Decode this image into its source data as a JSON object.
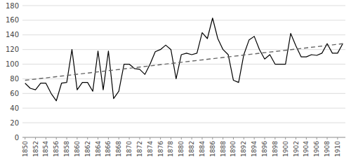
{
  "chart_data": {
    "type": "line",
    "x": [
      1850,
      1851,
      1852,
      1853,
      1854,
      1855,
      1856,
      1857,
      1858,
      1859,
      1860,
      1861,
      1862,
      1863,
      1864,
      1865,
      1866,
      1867,
      1868,
      1869,
      1870,
      1871,
      1872,
      1873,
      1874,
      1875,
      1876,
      1877,
      1878,
      1879,
      1880,
      1881,
      1882,
      1883,
      1884,
      1885,
      1886,
      1887,
      1888,
      1889,
      1890,
      1891,
      1892,
      1893,
      1894,
      1895,
      1896,
      1897,
      1898,
      1899,
      1900,
      1901,
      1902,
      1903,
      1904,
      1905,
      1906,
      1907,
      1908,
      1909,
      1910,
      1911
    ],
    "series": [
      {
        "color": "#000000",
        "line_style": "solid",
        "values": [
          74,
          67,
          65,
          74,
          74,
          60,
          50,
          74,
          75,
          120,
          65,
          75,
          75,
          63,
          118,
          65,
          118,
          53,
          63,
          100,
          100,
          94,
          93,
          86,
          100,
          117,
          120,
          126,
          120,
          80,
          113,
          115,
          113,
          115,
          143,
          135,
          163,
          135,
          120,
          113,
          78,
          75,
          113,
          133,
          138,
          120,
          107,
          113,
          100,
          100,
          100,
          142,
          125,
          110,
          110,
          113,
          112,
          115,
          128,
          115,
          115,
          128
        ]
      },
      {
        "color": "#666666",
        "line_style": "dashed",
        "x": [
          1850,
          1911
        ],
        "values": [
          78,
          128
        ]
      }
    ],
    "xlim": [
      1849.5,
      1911.5
    ],
    "xticks": [
      1850,
      1852,
      1854,
      1856,
      1858,
      1860,
      1862,
      1864,
      1866,
      1868,
      1870,
      1872,
      1874,
      1876,
      1878,
      1880,
      1882,
      1884,
      1886,
      1888,
      1890,
      1892,
      1894,
      1896,
      1898,
      1900,
      1902,
      1904,
      1906,
      1908,
      1910
    ],
    "ylim": [
      0,
      180
    ],
    "yticks": [
      0,
      20,
      40,
      60,
      80,
      100,
      120,
      140,
      160,
      180
    ],
    "grid": true
  }
}
